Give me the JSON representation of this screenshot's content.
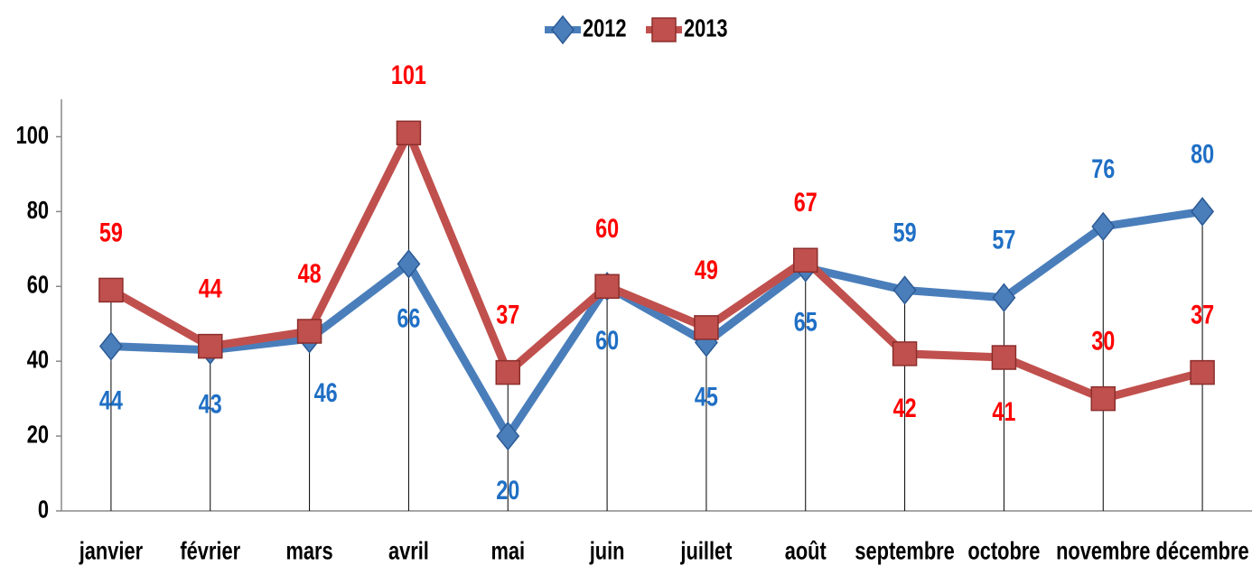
{
  "chart_data": {
    "type": "line",
    "categories": [
      "janvier",
      "février",
      "mars",
      "avril",
      "mai",
      "juin",
      "juillet",
      "août",
      "septembre",
      "octobre",
      "novembre",
      "décembre"
    ],
    "series": [
      {
        "name": "2012",
        "color": "#4a7ebb",
        "label_color": "#1f6fc5",
        "marker": "diamond",
        "values": [
          44,
          43,
          46,
          66,
          20,
          60,
          45,
          65,
          59,
          57,
          76,
          80
        ]
      },
      {
        "name": "2013",
        "color": "#c0504d",
        "label_color": "#ff0000",
        "marker": "square",
        "values": [
          59,
          44,
          48,
          101,
          37,
          60,
          49,
          67,
          42,
          41,
          30,
          37
        ]
      }
    ],
    "ylim": [
      0,
      110
    ],
    "yticks": [
      0,
      20,
      40,
      60,
      80,
      100
    ],
    "grid": false,
    "legend": "top",
    "drop_lines": true
  }
}
